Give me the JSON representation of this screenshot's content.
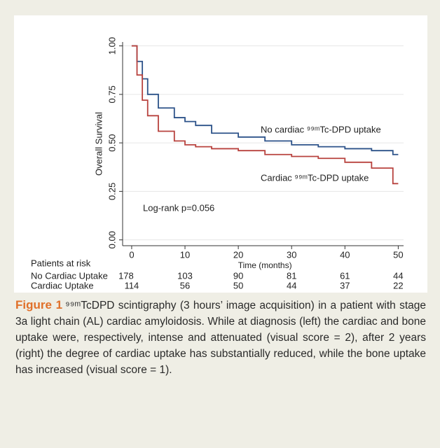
{
  "chart_data": {
    "type": "line",
    "x_label": "Time (months)",
    "y_label": "Overall Survival",
    "x": [
      0,
      1,
      1,
      2,
      2,
      3,
      3,
      5,
      5,
      8,
      8,
      10,
      10,
      12,
      12,
      15,
      15,
      20,
      20,
      25,
      25,
      30,
      30,
      35,
      35,
      40,
      40,
      45,
      45,
      49,
      49,
      50
    ],
    "series": [
      {
        "name": "No cardiac ⁹⁹ᵐTc-DPD uptake",
        "color": "#2c5289",
        "values": [
          1,
          1,
          0.92,
          0.92,
          0.83,
          0.83,
          0.75,
          0.75,
          0.68,
          0.68,
          0.63,
          0.63,
          0.61,
          0.61,
          0.59,
          0.59,
          0.55,
          0.55,
          0.53,
          0.53,
          0.51,
          0.51,
          0.49,
          0.49,
          0.48,
          0.48,
          0.47,
          0.47,
          0.46,
          0.46,
          0.44,
          0.44
        ]
      },
      {
        "name": "Cardiac ⁹⁹ᵐTc-DPD uptake",
        "color": "#b8423e",
        "values": [
          1,
          1,
          0.85,
          0.85,
          0.72,
          0.72,
          0.64,
          0.64,
          0.56,
          0.56,
          0.51,
          0.51,
          0.49,
          0.49,
          0.48,
          0.48,
          0.47,
          0.47,
          0.46,
          0.46,
          0.44,
          0.44,
          0.43,
          0.43,
          0.42,
          0.42,
          0.4,
          0.4,
          0.37,
          0.37,
          0.29,
          0.29
        ]
      }
    ],
    "xlim": [
      -1.7,
      51
    ],
    "ylim": [
      -0.03,
      1.02
    ],
    "xticks": [
      0,
      10,
      20,
      30,
      40,
      50
    ],
    "yticks": [
      {
        "value": 0,
        "label": "0.00"
      },
      {
        "value": 0.25,
        "label": "0.25"
      },
      {
        "value": 0.5,
        "label": "0.50"
      },
      {
        "value": 0.75,
        "label": "0.75"
      },
      {
        "value": 1,
        "label": "1.00"
      }
    ],
    "grid": true,
    "annotation": "Log-rank p=0.056",
    "risk_table": {
      "title": "Patients at risk",
      "rows": [
        {
          "name": "No Cardiac Uptake",
          "values": [
            178,
            103,
            90,
            81,
            61,
            44
          ]
        },
        {
          "name": "Cardiac Uptake",
          "values": [
            114,
            56,
            50,
            44,
            37,
            22
          ]
        }
      ]
    }
  },
  "caption": {
    "label": "Figure 1",
    "text": "⁹⁹ᵐTcDPD scintigraphy (3 hours’ image acquisition) in a patient with stage 3a light chain (AL) cardiac amyloidosis. While at diagnosis (left) the cardiac and bone uptake were, respectively, intense and attenuated (visual score = 2), after 2 years (right) the degree of cardiac uptake has substantially reduced, while the bone uptake has increased (visual score = 1)."
  }
}
